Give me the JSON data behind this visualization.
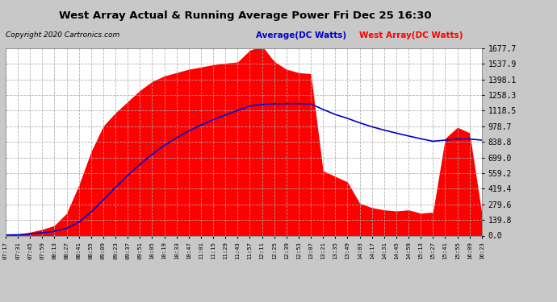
{
  "title": "West Array Actual & Running Average Power Fri Dec 25 16:30",
  "copyright": "Copyright 2020 Cartronics.com",
  "legend_avg": "Average(DC Watts)",
  "legend_west": "West Array(DC Watts)",
  "ylabel_values": [
    0.0,
    139.8,
    279.6,
    419.4,
    559.2,
    699.0,
    838.8,
    978.7,
    1118.5,
    1258.3,
    1398.1,
    1537.9,
    1677.7
  ],
  "xtick_labels": [
    "07:17",
    "07:31",
    "07:45",
    "07:59",
    "08:13",
    "08:27",
    "08:41",
    "08:55",
    "09:09",
    "09:23",
    "09:37",
    "09:51",
    "10:05",
    "10:19",
    "10:33",
    "10:47",
    "11:01",
    "11:15",
    "11:29",
    "11:43",
    "11:57",
    "12:11",
    "12:25",
    "12:39",
    "12:53",
    "13:07",
    "13:21",
    "13:35",
    "13:49",
    "14:03",
    "14:17",
    "14:31",
    "14:45",
    "14:59",
    "15:13",
    "15:27",
    "15:41",
    "15:55",
    "16:09",
    "16:23"
  ],
  "bg_color": "#c8c8c8",
  "plot_bg_color": "#ffffff",
  "bar_color": "#ff0000",
  "line_color": "#0000cc",
  "title_color": "#000000",
  "grid_color": "#aaaaaa",
  "ymax": 1677.7,
  "ymin": 0.0,
  "west_array": [
    5,
    10,
    30,
    55,
    90,
    200,
    450,
    750,
    980,
    1100,
    1200,
    1300,
    1380,
    1430,
    1460,
    1490,
    1510,
    1530,
    1545,
    1555,
    1660,
    1700,
    1560,
    1490,
    1460,
    1450,
    580,
    530,
    480,
    290,
    250,
    230,
    220,
    230,
    200,
    210,
    870,
    970,
    920,
    200
  ],
  "avg_line": [
    5,
    7,
    15,
    25,
    38,
    65,
    120,
    210,
    320,
    432,
    538,
    638,
    728,
    808,
    876,
    937,
    990,
    1038,
    1081,
    1120,
    1160,
    1175,
    1180,
    1182,
    1182,
    1180,
    1130,
    1085,
    1050,
    1010,
    975,
    945,
    918,
    892,
    868,
    845,
    855,
    865,
    865,
    855
  ]
}
